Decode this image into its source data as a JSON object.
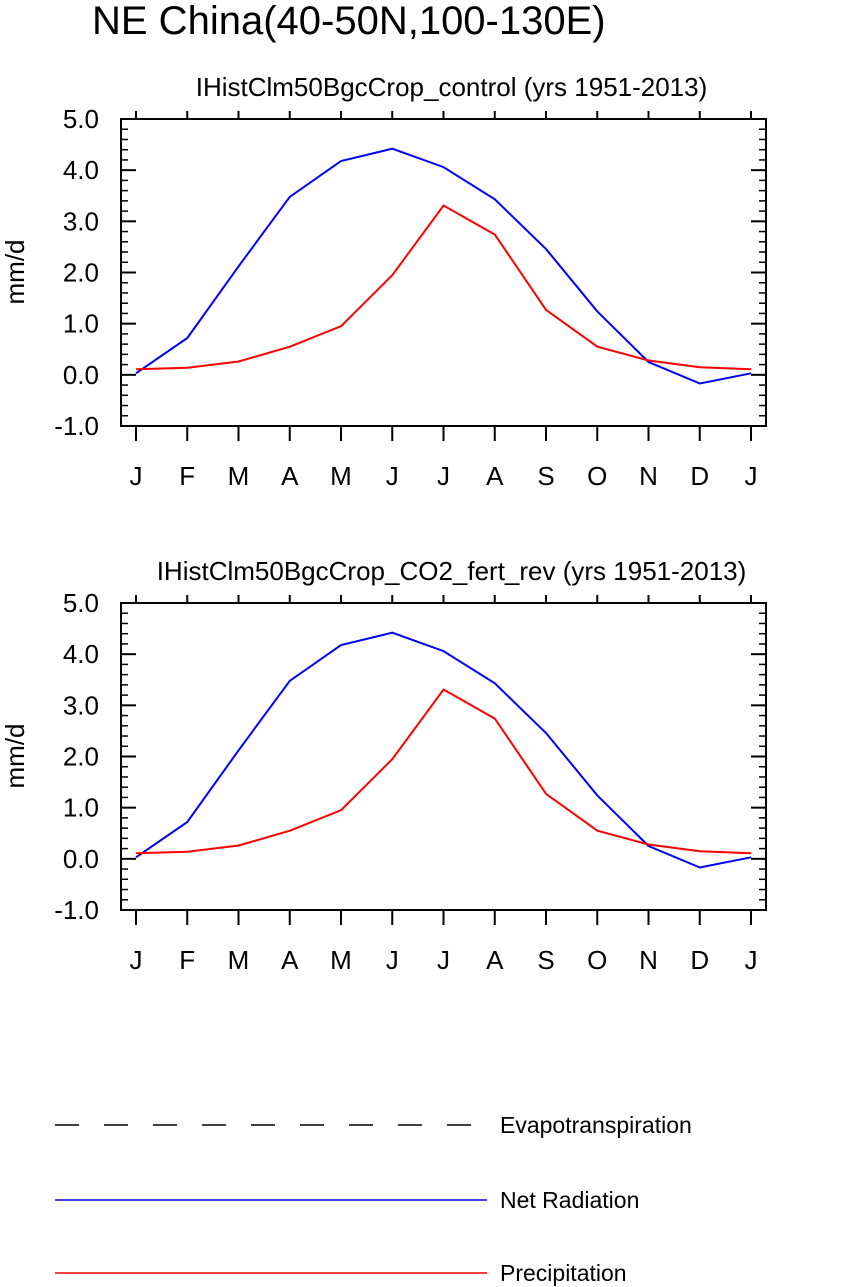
{
  "figure_title": "NE China(40-50N,100-130E)",
  "chart_data": [
    {
      "type": "line",
      "title": "IHistClm50BgcCrop_control (yrs 1951-2013)",
      "xlabel": "",
      "ylabel": "mm/d",
      "ylim": [
        -1.0,
        5.0
      ],
      "yticks": [
        "-1.0",
        "0.0",
        "1.0",
        "2.0",
        "3.0",
        "4.0",
        "5.0"
      ],
      "categories": [
        "J",
        "F",
        "M",
        "A",
        "M",
        "J",
        "J",
        "A",
        "S",
        "O",
        "N",
        "D",
        "J"
      ],
      "series": [
        {
          "name": "Net Radiation",
          "color": "#0000ff",
          "values": [
            0.03,
            0.72,
            2.12,
            3.48,
            4.18,
            4.42,
            4.06,
            3.43,
            2.46,
            1.24,
            0.25,
            -0.17,
            0.03
          ]
        },
        {
          "name": "Precipitation",
          "color": "#ff0000",
          "values": [
            0.11,
            0.14,
            0.26,
            0.55,
            0.95,
            1.95,
            3.31,
            2.74,
            1.27,
            0.55,
            0.28,
            0.15,
            0.11
          ]
        }
      ]
    },
    {
      "type": "line",
      "title": "IHistClm50BgcCrop_CO2_fert_rev (yrs 1951-2013)",
      "xlabel": "",
      "ylabel": "mm/d",
      "ylim": [
        -1.0,
        5.0
      ],
      "yticks": [
        "-1.0",
        "0.0",
        "1.0",
        "2.0",
        "3.0",
        "4.0",
        "5.0"
      ],
      "categories": [
        "J",
        "F",
        "M",
        "A",
        "M",
        "J",
        "J",
        "A",
        "S",
        "O",
        "N",
        "D",
        "J"
      ],
      "series": [
        {
          "name": "Net Radiation",
          "color": "#0000ff",
          "values": [
            0.03,
            0.72,
            2.12,
            3.48,
            4.18,
            4.42,
            4.06,
            3.43,
            2.46,
            1.24,
            0.25,
            -0.17,
            0.03
          ]
        },
        {
          "name": "Precipitation",
          "color": "#ff0000",
          "values": [
            0.11,
            0.14,
            0.26,
            0.55,
            0.95,
            1.95,
            3.31,
            2.74,
            1.27,
            0.55,
            0.28,
            0.15,
            0.11
          ]
        }
      ]
    }
  ],
  "legend": [
    {
      "label": "Evapotranspiration",
      "color": "#000000",
      "style": "dashed"
    },
    {
      "label": "Net Radiation",
      "color": "#0000ff",
      "style": "solid"
    },
    {
      "label": "Precipitation",
      "color": "#ff0000",
      "style": "solid"
    }
  ]
}
